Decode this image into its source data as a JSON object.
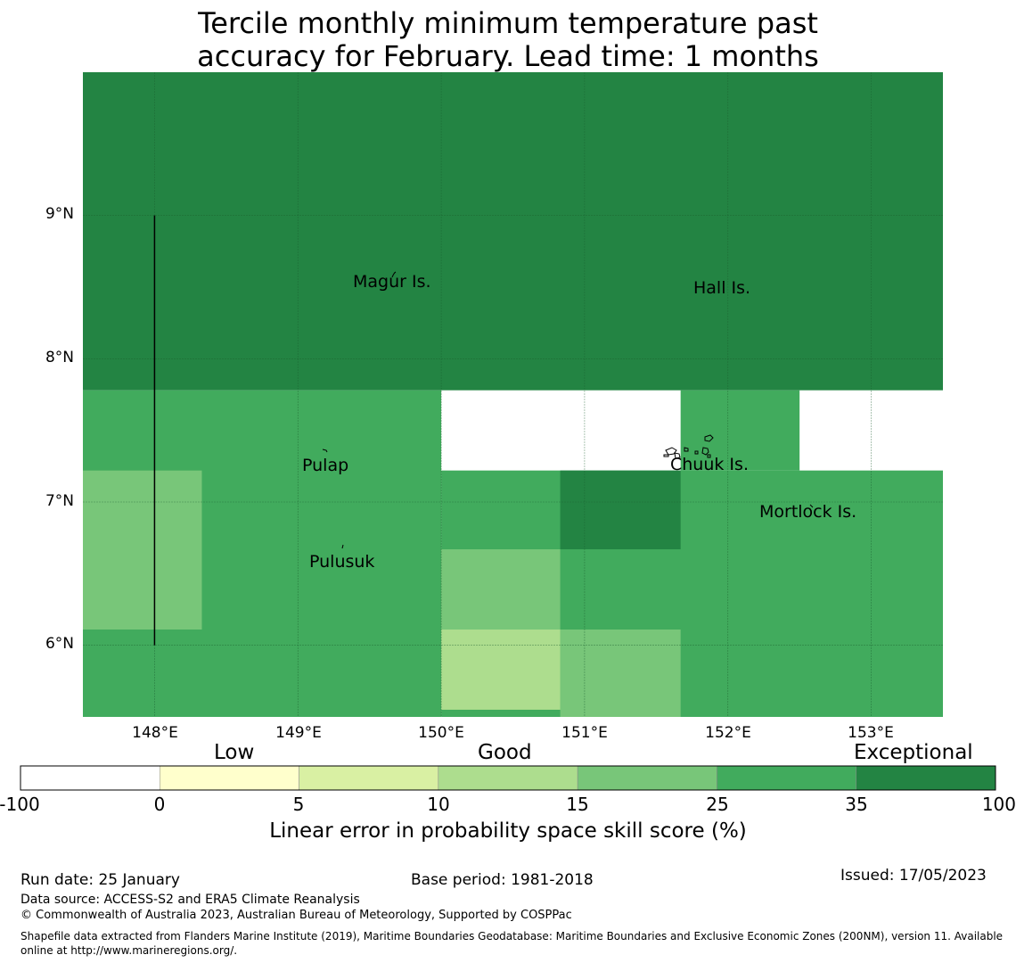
{
  "title": {
    "line1": "Tercile monthly minimum temperature past",
    "line2": "accuracy for February. Lead time: 1 months"
  },
  "map": {
    "lat_labels": [
      "9°N",
      "8°N",
      "7°N",
      "6°N"
    ],
    "lon_labels": [
      "148°E",
      "149°E",
      "150°E",
      "151°E",
      "152°E",
      "153°E"
    ],
    "lon_range": [
      147.5,
      153.5
    ],
    "lat_range": [
      5.5,
      10.0
    ],
    "places": [
      {
        "name": "Magur Is.",
        "lon": 149.69,
        "lat": 8.5
      },
      {
        "name": "Hall Is.",
        "lon": 151.98,
        "lat": 8.46
      },
      {
        "name": "Pulap",
        "lon": 149.21,
        "lat": 7.22
      },
      {
        "name": "Chuuk Is.",
        "lon": 151.9,
        "lat": 7.23
      },
      {
        "name": "Mortlock Is.",
        "lon": 152.6,
        "lat": 6.9
      },
      {
        "name": "Pulusuk",
        "lon": 149.33,
        "lat": 6.55
      }
    ],
    "cells": [
      {
        "lon": [
          147.5,
          153.5
        ],
        "lat": [
          7.78,
          10.0
        ],
        "value": 100
      },
      {
        "lon": [
          147.5,
          150.0
        ],
        "lat": [
          5.5,
          7.78
        ],
        "value": 30
      },
      {
        "lon": [
          150.0,
          153.5
        ],
        "lat": [
          5.5,
          7.22
        ],
        "value": 30
      },
      {
        "lon": [
          151.67,
          152.5
        ],
        "lat": [
          7.22,
          7.78
        ],
        "value": 30
      },
      {
        "lon": [
          150.83,
          151.67
        ],
        "lat": [
          6.67,
          7.22
        ],
        "value": 100
      },
      {
        "lon": [
          147.5,
          148.33
        ],
        "lat": [
          6.11,
          7.22
        ],
        "value": 20
      },
      {
        "lon": [
          150.0,
          150.83
        ],
        "lat": [
          6.11,
          6.67
        ],
        "value": 20
      },
      {
        "lon": [
          150.83,
          151.67
        ],
        "lat": [
          5.5,
          6.11
        ],
        "value": 20
      },
      {
        "lon": [
          150.0,
          150.83
        ],
        "lat": [
          5.55,
          6.11
        ],
        "value": 12
      }
    ],
    "boundary_line": {
      "lon": 148.0,
      "lat": [
        6.0,
        9.0
      ]
    }
  },
  "colorbar": {
    "category_labels": [
      "Low",
      "Good",
      "Exceptional"
    ],
    "ticks": [
      "-100",
      "0",
      "5",
      "10",
      "15",
      "25",
      "35",
      "100"
    ],
    "colors": [
      "#ffffff",
      "#ffffcc",
      "#d9f0a3",
      "#addd8e",
      "#78c679",
      "#41ab5d",
      "#238443"
    ],
    "xlabel": "Linear error in probability space skill score (%)"
  },
  "footer": {
    "run_date": "Run date: 25 January",
    "base_period": "Base period: 1981-2018",
    "issued": "Issued: 17/05/2023",
    "data_source": "Data source: ACCESS-S2 and ERA5 Climate Reanalysis",
    "copyright": "© Commonwealth of Australia 2023, Australian Bureau of Meteorology, Supported by COSPPac",
    "shapefile_line1": "Shapefile data extracted from Flanders Marine Institute (2019), Maritime Boundaries Geodatabase: Maritime Boundaries and Exclusive Economic Zones (200NM), version 11. Available",
    "shapefile_line2": "online at http://www.marineregions.org/."
  }
}
